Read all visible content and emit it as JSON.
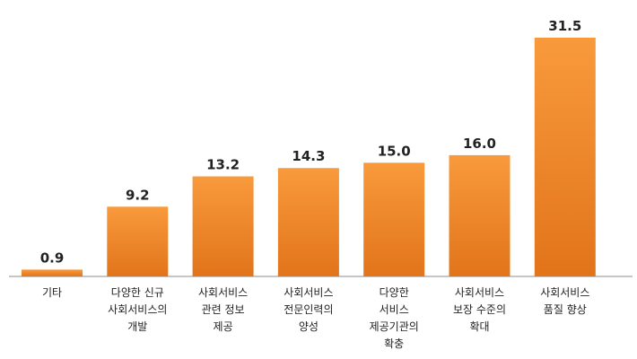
{
  "chart_data": {
    "type": "bar",
    "categories": [
      [
        "기타"
      ],
      [
        "다양한 신규",
        "사회서비스의",
        "개발"
      ],
      [
        "사회서비스",
        "관련 정보",
        "제공"
      ],
      [
        "사회서비스",
        "전문인력의",
        "양성"
      ],
      [
        "다양한",
        "서비스",
        "제공기관의",
        "확충"
      ],
      [
        "사회서비스",
        "보장 수준의",
        "확대"
      ],
      [
        "사회서비스",
        "품질 향상"
      ]
    ],
    "values": [
      0.9,
      9.2,
      13.2,
      14.3,
      15.0,
      16.0,
      31.5
    ],
    "value_labels": [
      "0.9",
      "9.2",
      "13.2",
      "14.3",
      "15.0",
      "16.0",
      "31.5"
    ],
    "ylim": [
      0,
      31.5
    ],
    "grid": false,
    "legend": "none",
    "title": "",
    "xlabel": "",
    "ylabel": "",
    "colors": {
      "bar_top": "#f89a3c",
      "bar_bottom": "#e2741a",
      "axis": "#8c8c8c",
      "text": "#222222"
    }
  }
}
